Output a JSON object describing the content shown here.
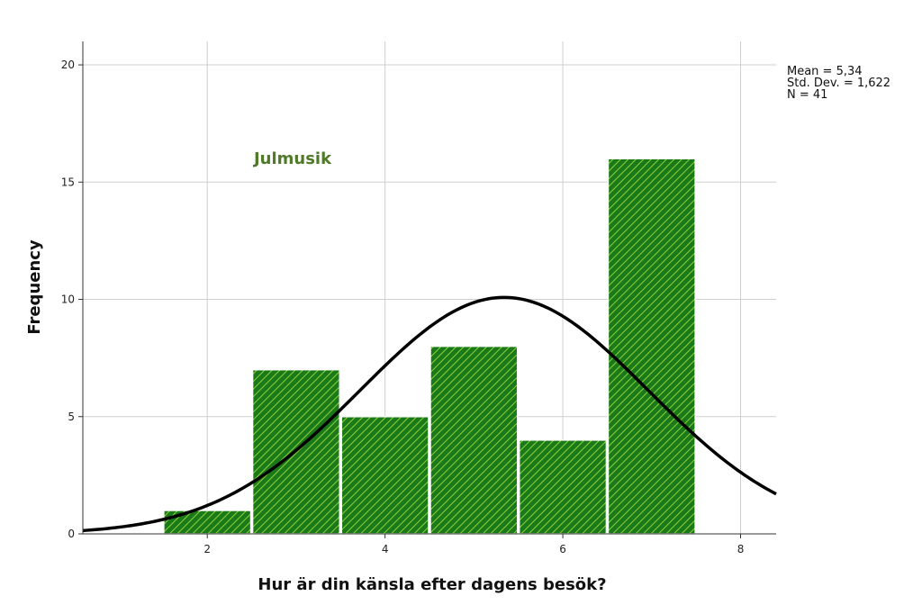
{
  "chart_data": {
    "type": "bar",
    "title": "Julmusik",
    "xlabel": "Hur är din känsla efter dagens besök?",
    "ylabel": "Frequency",
    "categories": [
      2,
      3,
      4,
      5,
      6,
      7
    ],
    "values": [
      1,
      7,
      5,
      8,
      4,
      16
    ],
    "bin_width": 1,
    "xlim": [
      0.6,
      8.4
    ],
    "ylim": [
      0,
      21
    ],
    "xticks": [
      2,
      4,
      6,
      8
    ],
    "yticks": [
      0,
      5,
      10,
      15,
      20
    ],
    "grid": true,
    "normal_curve": {
      "mean": 5.34,
      "std": 1.622,
      "n": 41
    },
    "stats_legend": [
      "Mean = 5,34",
      "Std. Dev. = 1,622",
      "N = 41"
    ],
    "colors": {
      "bar_fill": "#1a7a1a",
      "bar_hatch": "#8fcf3a",
      "curve": "#000000",
      "title": "#4f7a28",
      "grid": "#cfcfcf"
    }
  }
}
